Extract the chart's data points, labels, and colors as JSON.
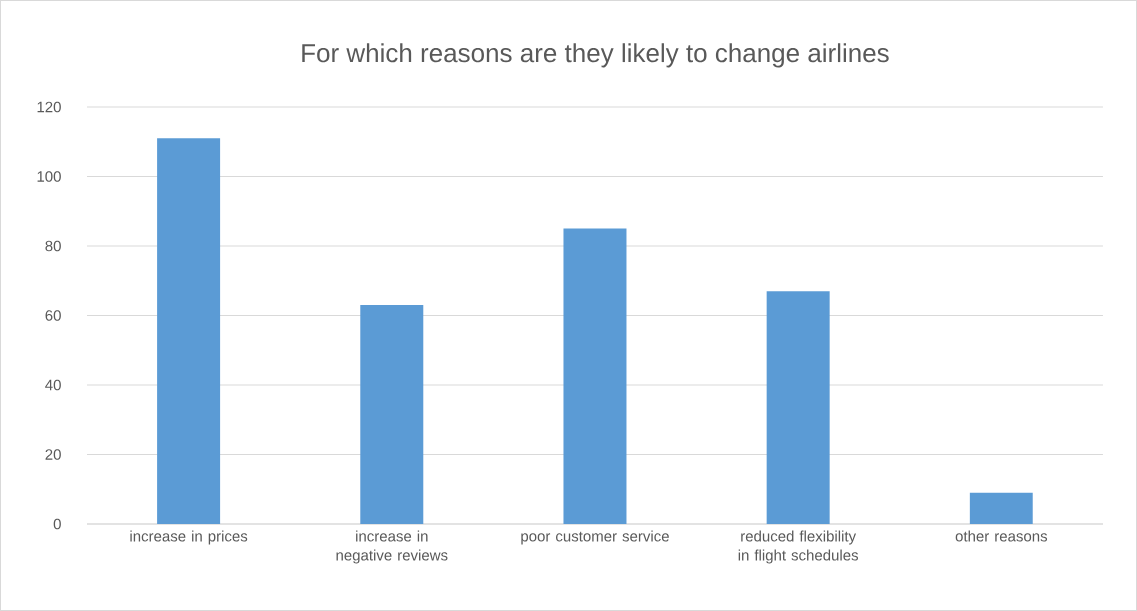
{
  "chart_data": {
    "type": "bar",
    "title": "For which reasons are they likely to change airlines",
    "categories": [
      "increase in prices",
      "increase in negative reviews",
      "poor customer service",
      "reduced flexibility in flight schedules",
      "other reasons"
    ],
    "values": [
      111,
      63,
      85,
      67,
      9
    ],
    "color": "#5b9bd5",
    "ylim": [
      0,
      120
    ],
    "yticks": [
      0,
      20,
      40,
      60,
      80,
      100,
      120
    ],
    "grid": "y"
  }
}
